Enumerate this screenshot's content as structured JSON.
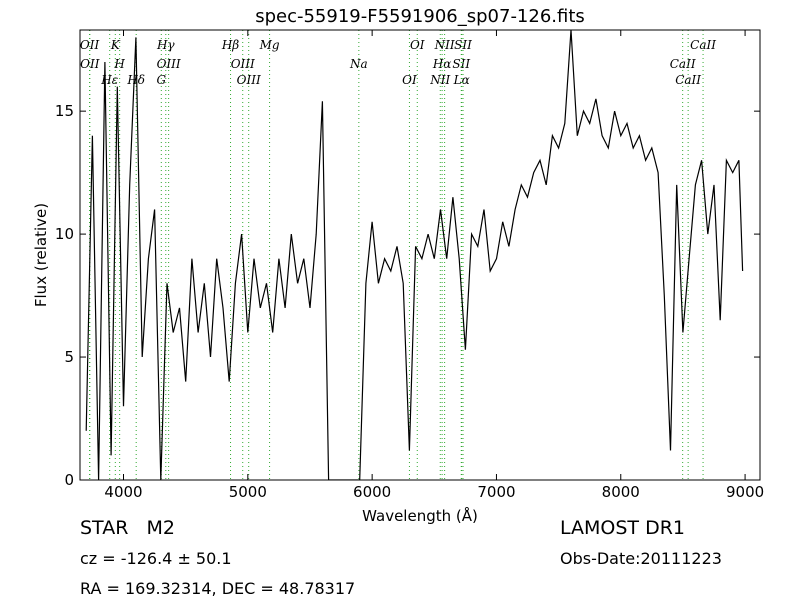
{
  "chart_data": {
    "type": "line",
    "title": "spec-55919-F5591906_sp07-126.fits",
    "x_label": "Wavelength (Å)",
    "y_label": "Flux (relative)",
    "xlim": [
      3650,
      9120
    ],
    "ylim": [
      0,
      18.3
    ],
    "xticks": [
      4000,
      5000,
      6000,
      7000,
      8000,
      9000
    ],
    "yticks": [
      0,
      5,
      10,
      15
    ],
    "color": "#000000",
    "line_color": "#33aa33",
    "x": [
      3700,
      3750,
      3800,
      3850,
      3900,
      3950,
      4000,
      4050,
      4100,
      4150,
      4200,
      4250,
      4300,
      4350,
      4400,
      4450,
      4500,
      4550,
      4600,
      4650,
      4700,
      4750,
      4800,
      4850,
      4900,
      4950,
      5000,
      5050,
      5100,
      5150,
      5200,
      5250,
      5300,
      5350,
      5400,
      5450,
      5500,
      5550,
      5600,
      5650,
      5700,
      5750,
      5800,
      5850,
      5900,
      5950,
      6000,
      6050,
      6100,
      6150,
      6200,
      6250,
      6300,
      6350,
      6400,
      6450,
      6500,
      6550,
      6600,
      6650,
      6700,
      6750,
      6800,
      6850,
      6900,
      6950,
      7000,
      7050,
      7100,
      7150,
      7200,
      7250,
      7300,
      7350,
      7400,
      7450,
      7500,
      7550,
      7600,
      7650,
      7700,
      7750,
      7800,
      7850,
      7900,
      7950,
      8000,
      8050,
      8100,
      8150,
      8200,
      8250,
      8300,
      8350,
      8400,
      8450,
      8500,
      8550,
      8600,
      8650,
      8700,
      8750,
      8800,
      8850,
      8900,
      8950,
      8980
    ],
    "values": [
      2,
      14,
      0,
      17,
      1,
      16,
      3,
      12,
      18,
      5,
      9,
      11,
      0,
      8,
      6,
      7,
      4,
      9,
      6,
      8,
      5,
      9,
      7,
      4,
      8,
      10,
      6,
      9,
      7,
      8,
      6,
      9,
      7,
      10,
      8,
      9,
      7,
      10,
      15.4,
      0,
      0,
      0,
      0,
      0,
      0,
      8,
      10.5,
      8,
      9,
      8.5,
      9.5,
      8,
      1.2,
      9.5,
      9,
      10,
      9,
      11,
      9,
      11.5,
      9,
      5.3,
      10,
      9.5,
      11,
      8.5,
      9,
      10.5,
      9.5,
      11,
      12,
      11.5,
      12.5,
      13,
      12,
      14,
      13.5,
      14.5,
      18.3,
      14,
      15,
      14.5,
      15.5,
      14,
      13.5,
      15,
      14,
      14.5,
      13.5,
      14,
      13,
      13.5,
      12.5,
      7.5,
      1.2,
      12,
      6,
      9,
      12,
      13,
      10,
      12,
      6.5,
      13,
      12.5,
      13,
      8.5
    ],
    "spectral_lines": [
      {
        "label": "OII",
        "wavelength": 3727
      },
      {
        "label": "OII",
        "wavelength": 3729
      },
      {
        "label": "Hε",
        "wavelength": 3889
      },
      {
        "label": "K",
        "wavelength": 3934
      },
      {
        "label": "H",
        "wavelength": 3969
      },
      {
        "label": "Hδ",
        "wavelength": 4102
      },
      {
        "label": "Hγ",
        "wavelength": 4340
      },
      {
        "label": "OIII",
        "wavelength": 4363
      },
      {
        "label": "G",
        "wavelength": 4304
      },
      {
        "label": "Hβ",
        "wavelength": 4861
      },
      {
        "label": "OIII",
        "wavelength": 4959
      },
      {
        "label": "OIII",
        "wavelength": 5007
      },
      {
        "label": "Mg",
        "wavelength": 5175
      },
      {
        "label": "Na",
        "wavelength": 5893
      },
      {
        "label": "OI",
        "wavelength": 6300
      },
      {
        "label": "OI",
        "wavelength": 6363
      },
      {
        "label": "Hα",
        "wavelength": 6563
      },
      {
        "label": "NII",
        "wavelength": 6548
      },
      {
        "label": "NII",
        "wavelength": 6583
      },
      {
        "label": "SII",
        "wavelength": 6717
      },
      {
        "label": "Lα",
        "wavelength": 6720
      },
      {
        "label": "SII",
        "wavelength": 6731
      },
      {
        "label": "CaII",
        "wavelength": 8498
      },
      {
        "label": "CaII",
        "wavelength": 8542
      },
      {
        "label": "CaII",
        "wavelength": 8662
      }
    ],
    "annotations": [
      "STAR   M2",
      "cz = -126.4 ± 50.1",
      "RA = 169.32314, DEC = 48.78317",
      "LAMOST DR1",
      "Obs-Date:20111223"
    ]
  }
}
